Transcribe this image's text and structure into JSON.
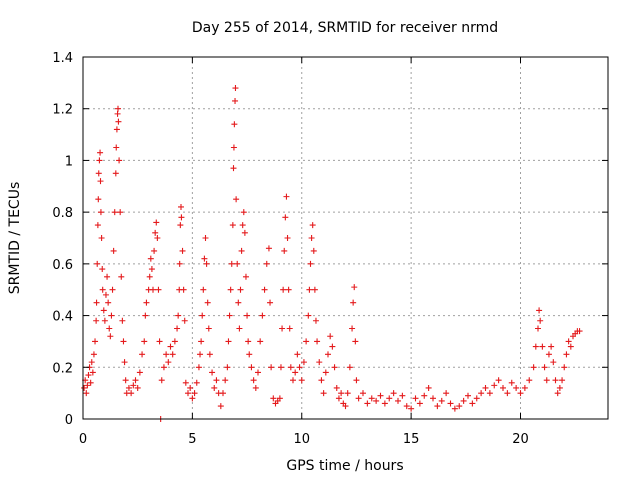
{
  "chart_data": {
    "type": "scatter",
    "title": "Day 255 of 2014, SRMTID for receiver nrmd",
    "xlabel": "GPS time / hours",
    "ylabel": "SRMTID / TECUs",
    "xlim": [
      0,
      24
    ],
    "ylim": [
      0,
      1.4
    ],
    "grid": true,
    "marker": "+",
    "color": "#e41a1c",
    "x_ticks": [
      0,
      5,
      10,
      15,
      20
    ],
    "x_tick_labels": [
      "0",
      "5",
      "10",
      "15",
      "20"
    ],
    "y_ticks": [
      0,
      0.2,
      0.4,
      0.6,
      0.8,
      1.0,
      1.2,
      1.4
    ],
    "y_tick_labels": [
      "0",
      "0.2",
      "0.4",
      "0.6",
      "0.8",
      "1",
      "1.2",
      "1.4"
    ],
    "series": [
      {
        "name": "SRMTID",
        "points": [
          [
            0.05,
            0.12
          ],
          [
            0.1,
            0.15
          ],
          [
            0.15,
            0.1
          ],
          [
            0.2,
            0.13
          ],
          [
            0.25,
            0.17
          ],
          [
            0.3,
            0.2
          ],
          [
            0.35,
            0.14
          ],
          [
            0.4,
            0.22
          ],
          [
            0.45,
            0.18
          ],
          [
            0.5,
            0.25
          ],
          [
            0.55,
            0.3
          ],
          [
            0.6,
            0.38
          ],
          [
            0.62,
            0.45
          ],
          [
            0.65,
            0.6
          ],
          [
            0.68,
            0.75
          ],
          [
            0.7,
            0.85
          ],
          [
            0.72,
            0.95
          ],
          [
            0.75,
            1.0
          ],
          [
            0.78,
            1.03
          ],
          [
            0.8,
            0.92
          ],
          [
            0.82,
            0.8
          ],
          [
            0.85,
            0.7
          ],
          [
            0.88,
            0.58
          ],
          [
            0.9,
            0.5
          ],
          [
            0.95,
            0.42
          ],
          [
            1.0,
            0.38
          ],
          [
            1.05,
            0.48
          ],
          [
            1.1,
            0.55
          ],
          [
            1.15,
            0.45
          ],
          [
            1.2,
            0.35
          ],
          [
            1.25,
            0.32
          ],
          [
            1.3,
            0.4
          ],
          [
            1.35,
            0.5
          ],
          [
            1.4,
            0.65
          ],
          [
            1.45,
            0.8
          ],
          [
            1.5,
            0.95
          ],
          [
            1.52,
            1.05
          ],
          [
            1.55,
            1.12
          ],
          [
            1.58,
            1.18
          ],
          [
            1.6,
            1.2
          ],
          [
            1.62,
            1.15
          ],
          [
            1.65,
            1.0
          ],
          [
            1.7,
            0.8
          ],
          [
            1.75,
            0.55
          ],
          [
            1.8,
            0.38
          ],
          [
            1.85,
            0.3
          ],
          [
            1.9,
            0.22
          ],
          [
            1.95,
            0.15
          ],
          [
            2.0,
            0.1
          ],
          [
            2.1,
            0.12
          ],
          [
            2.2,
            0.1
          ],
          [
            2.3,
            0.13
          ],
          [
            2.4,
            0.15
          ],
          [
            2.5,
            0.12
          ],
          [
            2.6,
            0.18
          ],
          [
            2.7,
            0.25
          ],
          [
            2.8,
            0.3
          ],
          [
            2.85,
            0.4
          ],
          [
            2.9,
            0.45
          ],
          [
            3.0,
            0.5
          ],
          [
            3.05,
            0.55
          ],
          [
            3.1,
            0.62
          ],
          [
            3.15,
            0.58
          ],
          [
            3.2,
            0.5
          ],
          [
            3.25,
            0.65
          ],
          [
            3.3,
            0.72
          ],
          [
            3.35,
            0.76
          ],
          [
            3.4,
            0.7
          ],
          [
            3.45,
            0.5
          ],
          [
            3.5,
            0.3
          ],
          [
            3.55,
            0.0
          ],
          [
            3.6,
            0.15
          ],
          [
            3.7,
            0.2
          ],
          [
            3.8,
            0.25
          ],
          [
            3.9,
            0.22
          ],
          [
            4.0,
            0.28
          ],
          [
            4.1,
            0.25
          ],
          [
            4.2,
            0.3
          ],
          [
            4.3,
            0.35
          ],
          [
            4.35,
            0.4
          ],
          [
            4.4,
            0.5
          ],
          [
            4.42,
            0.6
          ],
          [
            4.45,
            0.75
          ],
          [
            4.48,
            0.82
          ],
          [
            4.5,
            0.78
          ],
          [
            4.55,
            0.65
          ],
          [
            4.6,
            0.5
          ],
          [
            4.65,
            0.38
          ],
          [
            4.7,
            0.14
          ],
          [
            4.8,
            0.1
          ],
          [
            4.9,
            0.12
          ],
          [
            5.0,
            0.08
          ],
          [
            5.1,
            0.1
          ],
          [
            5.2,
            0.14
          ],
          [
            5.3,
            0.2
          ],
          [
            5.35,
            0.25
          ],
          [
            5.4,
            0.3
          ],
          [
            5.45,
            0.4
          ],
          [
            5.5,
            0.5
          ],
          [
            5.55,
            0.62
          ],
          [
            5.6,
            0.7
          ],
          [
            5.65,
            0.6
          ],
          [
            5.7,
            0.45
          ],
          [
            5.75,
            0.35
          ],
          [
            5.8,
            0.25
          ],
          [
            5.9,
            0.18
          ],
          [
            6.0,
            0.12
          ],
          [
            6.1,
            0.15
          ],
          [
            6.2,
            0.1
          ],
          [
            6.3,
            0.05
          ],
          [
            6.4,
            0.1
          ],
          [
            6.5,
            0.15
          ],
          [
            6.6,
            0.2
          ],
          [
            6.65,
            0.3
          ],
          [
            6.7,
            0.4
          ],
          [
            6.75,
            0.5
          ],
          [
            6.8,
            0.6
          ],
          [
            6.85,
            0.75
          ],
          [
            6.88,
            0.97
          ],
          [
            6.9,
            1.05
          ],
          [
            6.92,
            1.14
          ],
          [
            6.95,
            1.23
          ],
          [
            6.97,
            1.28
          ],
          [
            7.0,
            0.85
          ],
          [
            7.05,
            0.6
          ],
          [
            7.1,
            0.45
          ],
          [
            7.15,
            0.35
          ],
          [
            7.2,
            0.5
          ],
          [
            7.25,
            0.65
          ],
          [
            7.3,
            0.75
          ],
          [
            7.35,
            0.8
          ],
          [
            7.4,
            0.72
          ],
          [
            7.45,
            0.55
          ],
          [
            7.5,
            0.4
          ],
          [
            7.55,
            0.3
          ],
          [
            7.6,
            0.25
          ],
          [
            7.7,
            0.2
          ],
          [
            7.8,
            0.15
          ],
          [
            7.9,
            0.12
          ],
          [
            8.0,
            0.18
          ],
          [
            8.1,
            0.3
          ],
          [
            8.2,
            0.4
          ],
          [
            8.3,
            0.5
          ],
          [
            8.4,
            0.6
          ],
          [
            8.5,
            0.66
          ],
          [
            8.55,
            0.45
          ],
          [
            8.6,
            0.2
          ],
          [
            8.7,
            0.08
          ],
          [
            8.8,
            0.06
          ],
          [
            8.9,
            0.07
          ],
          [
            9.0,
            0.08
          ],
          [
            9.05,
            0.2
          ],
          [
            9.1,
            0.35
          ],
          [
            9.15,
            0.5
          ],
          [
            9.2,
            0.65
          ],
          [
            9.25,
            0.78
          ],
          [
            9.3,
            0.86
          ],
          [
            9.35,
            0.7
          ],
          [
            9.4,
            0.5
          ],
          [
            9.45,
            0.35
          ],
          [
            9.5,
            0.2
          ],
          [
            9.6,
            0.15
          ],
          [
            9.7,
            0.18
          ],
          [
            9.8,
            0.25
          ],
          [
            9.9,
            0.2
          ],
          [
            10.0,
            0.15
          ],
          [
            10.1,
            0.22
          ],
          [
            10.2,
            0.3
          ],
          [
            10.3,
            0.4
          ],
          [
            10.35,
            0.5
          ],
          [
            10.4,
            0.6
          ],
          [
            10.45,
            0.7
          ],
          [
            10.5,
            0.75
          ],
          [
            10.55,
            0.65
          ],
          [
            10.6,
            0.5
          ],
          [
            10.65,
            0.38
          ],
          [
            10.7,
            0.3
          ],
          [
            10.8,
            0.22
          ],
          [
            10.9,
            0.15
          ],
          [
            11.0,
            0.1
          ],
          [
            11.1,
            0.18
          ],
          [
            11.2,
            0.25
          ],
          [
            11.3,
            0.32
          ],
          [
            11.4,
            0.28
          ],
          [
            11.5,
            0.2
          ],
          [
            11.6,
            0.12
          ],
          [
            11.7,
            0.08
          ],
          [
            11.8,
            0.1
          ],
          [
            11.9,
            0.06
          ],
          [
            12.0,
            0.05
          ],
          [
            12.1,
            0.1
          ],
          [
            12.2,
            0.2
          ],
          [
            12.3,
            0.35
          ],
          [
            12.35,
            0.45
          ],
          [
            12.4,
            0.51
          ],
          [
            12.45,
            0.3
          ],
          [
            12.5,
            0.15
          ],
          [
            12.6,
            0.08
          ],
          [
            12.8,
            0.1
          ],
          [
            13.0,
            0.06
          ],
          [
            13.2,
            0.08
          ],
          [
            13.4,
            0.07
          ],
          [
            13.6,
            0.09
          ],
          [
            13.8,
            0.06
          ],
          [
            14.0,
            0.08
          ],
          [
            14.2,
            0.1
          ],
          [
            14.4,
            0.07
          ],
          [
            14.6,
            0.09
          ],
          [
            14.8,
            0.05
          ],
          [
            15.0,
            0.04
          ],
          [
            15.2,
            0.08
          ],
          [
            15.4,
            0.06
          ],
          [
            15.6,
            0.09
          ],
          [
            15.8,
            0.12
          ],
          [
            16.0,
            0.08
          ],
          [
            16.2,
            0.05
          ],
          [
            16.4,
            0.07
          ],
          [
            16.6,
            0.1
          ],
          [
            16.8,
            0.06
          ],
          [
            17.0,
            0.04
          ],
          [
            17.2,
            0.05
          ],
          [
            17.4,
            0.07
          ],
          [
            17.6,
            0.09
          ],
          [
            17.8,
            0.06
          ],
          [
            18.0,
            0.08
          ],
          [
            18.2,
            0.1
          ],
          [
            18.4,
            0.12
          ],
          [
            18.6,
            0.1
          ],
          [
            18.8,
            0.13
          ],
          [
            19.0,
            0.15
          ],
          [
            19.2,
            0.12
          ],
          [
            19.4,
            0.1
          ],
          [
            19.6,
            0.14
          ],
          [
            19.8,
            0.12
          ],
          [
            20.0,
            0.1
          ],
          [
            20.2,
            0.12
          ],
          [
            20.4,
            0.15
          ],
          [
            20.6,
            0.2
          ],
          [
            20.7,
            0.28
          ],
          [
            20.8,
            0.35
          ],
          [
            20.85,
            0.42
          ],
          [
            20.9,
            0.38
          ],
          [
            21.0,
            0.28
          ],
          [
            21.1,
            0.2
          ],
          [
            21.2,
            0.15
          ],
          [
            21.3,
            0.25
          ],
          [
            21.4,
            0.28
          ],
          [
            21.5,
            0.22
          ],
          [
            21.6,
            0.15
          ],
          [
            21.7,
            0.1
          ],
          [
            21.8,
            0.12
          ],
          [
            21.9,
            0.15
          ],
          [
            22.0,
            0.2
          ],
          [
            22.1,
            0.25
          ],
          [
            22.2,
            0.3
          ],
          [
            22.3,
            0.28
          ],
          [
            22.4,
            0.32
          ],
          [
            22.5,
            0.33
          ],
          [
            22.6,
            0.34
          ],
          [
            22.7,
            0.34
          ]
        ]
      }
    ]
  }
}
